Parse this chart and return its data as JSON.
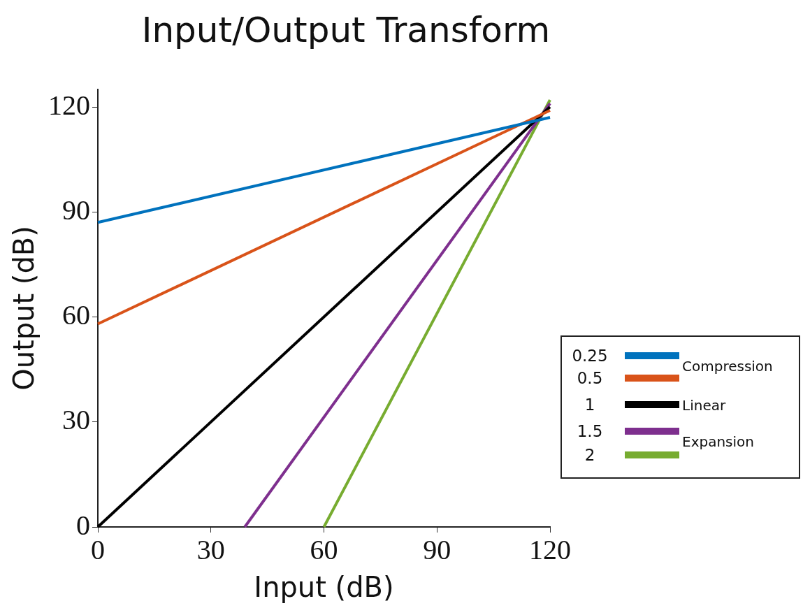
{
  "chart_data": {
    "type": "line",
    "title": "Input/Output Transform",
    "xlabel": "Input (dB)",
    "ylabel": "Output (dB)",
    "xlim": [
      0,
      120
    ],
    "xticks": [
      0,
      30,
      60,
      90,
      120
    ],
    "ylim": [
      0,
      125
    ],
    "yticks": [
      0,
      30,
      60,
      90,
      120
    ],
    "legend": "right",
    "annotations": [
      "Compression",
      "Linear",
      "Expansion"
    ],
    "series": [
      {
        "name": "0.25",
        "color": "#0072bd",
        "x": [
          0,
          120
        ],
        "values": [
          87,
          117
        ]
      },
      {
        "name": "0.5",
        "color": "#d95319",
        "x": [
          0,
          120
        ],
        "values": [
          58,
          119
        ]
      },
      {
        "name": "1",
        "color": "#000000",
        "x": [
          0,
          120
        ],
        "values": [
          0,
          120
        ]
      },
      {
        "name": "1.5",
        "color": "#7e2f8e",
        "x": [
          39,
          120
        ],
        "values": [
          0,
          121
        ]
      },
      {
        "name": "2",
        "color": "#77ac30",
        "x": [
          60,
          120
        ],
        "values": [
          0,
          122
        ]
      }
    ]
  }
}
